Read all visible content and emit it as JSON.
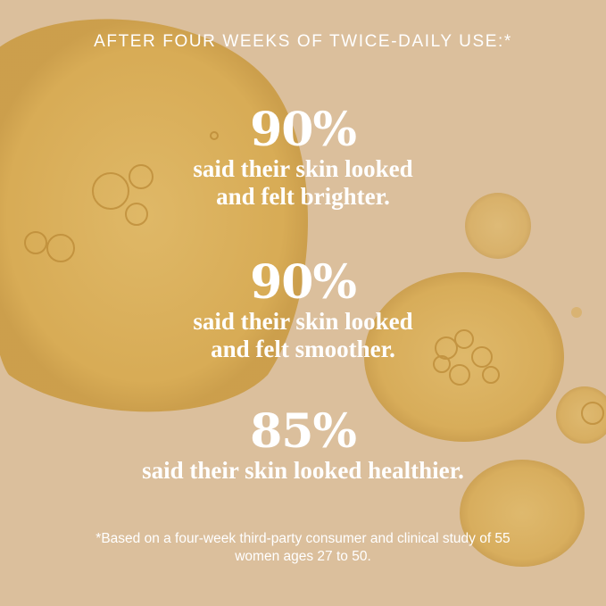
{
  "headline": "AFTER FOUR WEEKS OF TWICE-DAILY USE:*",
  "stats": [
    {
      "value": "90%",
      "line1": "said their skin looked",
      "line2": "and felt brighter."
    },
    {
      "value": "90%",
      "line1": "said their skin looked",
      "line2": "and felt smoother."
    },
    {
      "value": "85%",
      "line1": "said their skin looked healthier.",
      "line2": ""
    }
  ],
  "footnote": {
    "line1": "*Based on a four-week third-party consumer and clinical study of 55",
    "line2": "women ages 27 to 50."
  },
  "colors": {
    "background": "#dbbf9c",
    "droplet": "#d9a84a",
    "text": "#ffffff"
  }
}
